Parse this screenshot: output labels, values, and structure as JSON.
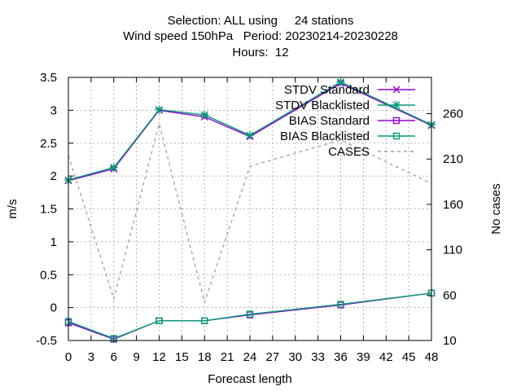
{
  "chart_data": {
    "type": "line",
    "title_lines": [
      "Selection: ALL using     24 stations",
      "Wind speed 150hPa   Period: 20230214-20230228",
      "Hours:  12"
    ],
    "xlabel": "Forecast length",
    "ylabel": "m/s",
    "y2label": "No cases",
    "x": [
      0,
      6,
      12,
      18,
      24,
      36,
      48
    ],
    "xticks": [
      "0",
      "3",
      "6",
      "9",
      "12",
      "15",
      "18",
      "21",
      "24",
      "27",
      "30",
      "33",
      "36",
      "39",
      "42",
      "45",
      "48"
    ],
    "yticks": [
      "-0.5",
      "0",
      "0.5",
      "1",
      "1.5",
      "2",
      "2.5",
      "3",
      "3.5"
    ],
    "y2ticks": [
      "10",
      "60",
      "110",
      "160",
      "210",
      "260"
    ],
    "xlim": [
      0,
      48
    ],
    "ylim": [
      -0.5,
      3.5
    ],
    "y2lim": [
      10,
      300
    ],
    "grid": true,
    "legend_position": "top-right",
    "series": [
      {
        "name": "STDV Standard",
        "color": "#9400d3",
        "marker": "x-star",
        "axis": "y",
        "values": [
          1.93,
          2.11,
          3.0,
          2.9,
          2.6,
          3.41,
          2.77
        ]
      },
      {
        "name": "STDV Blacklisted",
        "color": "#009e73",
        "marker": "star",
        "axis": "y",
        "values": [
          1.94,
          2.13,
          3.01,
          2.93,
          2.62,
          3.43,
          2.78
        ]
      },
      {
        "name": "BIAS Standard",
        "color": "#9400d3",
        "marker": "square",
        "axis": "y",
        "values": [
          -0.23,
          -0.48,
          -0.2,
          -0.2,
          -0.11,
          0.04,
          0.22
        ]
      },
      {
        "name": "BIAS Blacklisted",
        "color": "#009e73",
        "marker": "square",
        "axis": "y",
        "values": [
          -0.21,
          -0.47,
          -0.2,
          -0.2,
          -0.1,
          0.05,
          0.22
        ]
      },
      {
        "name": "CASES",
        "color": "#a0a0a0",
        "marker": "none",
        "dashed": true,
        "axis": "y2",
        "values": [
          214,
          56,
          249,
          52,
          202,
          231,
          183
        ]
      }
    ]
  }
}
